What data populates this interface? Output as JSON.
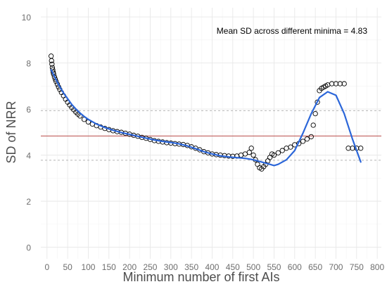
{
  "chart_data": {
    "type": "scatter",
    "xlabel": "Minimum number of first AIs",
    "ylabel": "SD of NRR",
    "xlim": [
      -15,
      810
    ],
    "ylim": [
      -0.5,
      10.4
    ],
    "x_ticks": [
      0,
      50,
      100,
      150,
      200,
      250,
      300,
      350,
      400,
      450,
      500,
      550,
      600,
      650,
      700,
      750,
      800
    ],
    "y_ticks": [
      0,
      2,
      4,
      6,
      8,
      10
    ],
    "grid": true,
    "annotation": "Mean SD across different minima =  4.83",
    "mean_line": 4.83,
    "dashed_lines": [
      5.93,
      3.78
    ],
    "series": [
      {
        "kind": "points",
        "marker": "open-circle",
        "points": [
          [
            10,
            8.3
          ],
          [
            11,
            8.1
          ],
          [
            12,
            7.95
          ],
          [
            13,
            7.8
          ],
          [
            14,
            7.7
          ],
          [
            15,
            7.6
          ],
          [
            16,
            7.52
          ],
          [
            18,
            7.4
          ],
          [
            20,
            7.3
          ],
          [
            22,
            7.2
          ],
          [
            25,
            7.08
          ],
          [
            28,
            6.96
          ],
          [
            31,
            6.85
          ],
          [
            35,
            6.72
          ],
          [
            40,
            6.58
          ],
          [
            45,
            6.43
          ],
          [
            50,
            6.3
          ],
          [
            55,
            6.18
          ],
          [
            60,
            6.07
          ],
          [
            65,
            5.97
          ],
          [
            70,
            5.87
          ],
          [
            75,
            5.78
          ],
          [
            80,
            5.7
          ],
          [
            90,
            5.55
          ],
          [
            100,
            5.44
          ],
          [
            110,
            5.35
          ],
          [
            120,
            5.28
          ],
          [
            130,
            5.22
          ],
          [
            140,
            5.16
          ],
          [
            150,
            5.11
          ],
          [
            160,
            5.06
          ],
          [
            170,
            5.02
          ],
          [
            180,
            4.99
          ],
          [
            190,
            4.95
          ],
          [
            200,
            4.91
          ],
          [
            210,
            4.86
          ],
          [
            220,
            4.82
          ],
          [
            230,
            4.77
          ],
          [
            240,
            4.73
          ],
          [
            250,
            4.68
          ],
          [
            260,
            4.63
          ],
          [
            270,
            4.6
          ],
          [
            280,
            4.57
          ],
          [
            290,
            4.54
          ],
          [
            300,
            4.52
          ],
          [
            310,
            4.5
          ],
          [
            320,
            4.48
          ],
          [
            330,
            4.46
          ],
          [
            340,
            4.42
          ],
          [
            350,
            4.36
          ],
          [
            360,
            4.3
          ],
          [
            370,
            4.23
          ],
          [
            380,
            4.15
          ],
          [
            390,
            4.1
          ],
          [
            400,
            4.05
          ],
          [
            410,
            4.02
          ],
          [
            420,
            4.0
          ],
          [
            430,
            3.98
          ],
          [
            440,
            3.96
          ],
          [
            450,
            3.95
          ],
          [
            460,
            3.96
          ],
          [
            470,
            4.0
          ],
          [
            480,
            4.05
          ],
          [
            490,
            4.12
          ],
          [
            495,
            4.3
          ],
          [
            500,
            4.0
          ],
          [
            505,
            3.8
          ],
          [
            510,
            3.6
          ],
          [
            515,
            3.45
          ],
          [
            520,
            3.4
          ],
          [
            525,
            3.5
          ],
          [
            530,
            3.6
          ],
          [
            535,
            3.75
          ],
          [
            540,
            3.9
          ],
          [
            545,
            4.05
          ],
          [
            550,
            4.0
          ],
          [
            560,
            4.1
          ],
          [
            570,
            4.2
          ],
          [
            580,
            4.3
          ],
          [
            590,
            4.35
          ],
          [
            600,
            4.45
          ],
          [
            610,
            4.5
          ],
          [
            620,
            4.6
          ],
          [
            630,
            4.7
          ],
          [
            640,
            4.8
          ],
          [
            645,
            5.3
          ],
          [
            650,
            5.8
          ],
          [
            655,
            6.3
          ],
          [
            660,
            6.8
          ],
          [
            665,
            6.9
          ],
          [
            670,
            6.95
          ],
          [
            675,
            7.0
          ],
          [
            680,
            7.05
          ],
          [
            690,
            7.1
          ],
          [
            700,
            7.1
          ],
          [
            710,
            7.1
          ],
          [
            720,
            7.1
          ],
          [
            730,
            4.3
          ],
          [
            740,
            4.3
          ],
          [
            750,
            4.3
          ],
          [
            760,
            4.3
          ]
        ]
      },
      {
        "kind": "smooth",
        "color": "#2b66d9",
        "points": [
          [
            10,
            7.7
          ],
          [
            20,
            7.35
          ],
          [
            30,
            7.0
          ],
          [
            40,
            6.7
          ],
          [
            50,
            6.45
          ],
          [
            60,
            6.2
          ],
          [
            70,
            6.0
          ],
          [
            80,
            5.83
          ],
          [
            90,
            5.68
          ],
          [
            100,
            5.55
          ],
          [
            120,
            5.35
          ],
          [
            140,
            5.2
          ],
          [
            160,
            5.08
          ],
          [
            180,
            4.98
          ],
          [
            200,
            4.9
          ],
          [
            220,
            4.82
          ],
          [
            240,
            4.74
          ],
          [
            260,
            4.66
          ],
          [
            280,
            4.6
          ],
          [
            300,
            4.55
          ],
          [
            320,
            4.49
          ],
          [
            340,
            4.4
          ],
          [
            360,
            4.28
          ],
          [
            380,
            4.15
          ],
          [
            400,
            4.05
          ],
          [
            420,
            3.97
          ],
          [
            440,
            3.92
          ],
          [
            460,
            3.89
          ],
          [
            480,
            3.86
          ],
          [
            500,
            3.8
          ],
          [
            520,
            3.7
          ],
          [
            540,
            3.6
          ],
          [
            550,
            3.55
          ],
          [
            560,
            3.6
          ],
          [
            580,
            3.8
          ],
          [
            600,
            4.2
          ],
          [
            620,
            4.95
          ],
          [
            640,
            5.8
          ],
          [
            660,
            6.5
          ],
          [
            680,
            6.75
          ],
          [
            700,
            6.6
          ],
          [
            720,
            5.8
          ],
          [
            740,
            4.7
          ],
          [
            760,
            3.7
          ]
        ]
      }
    ]
  }
}
